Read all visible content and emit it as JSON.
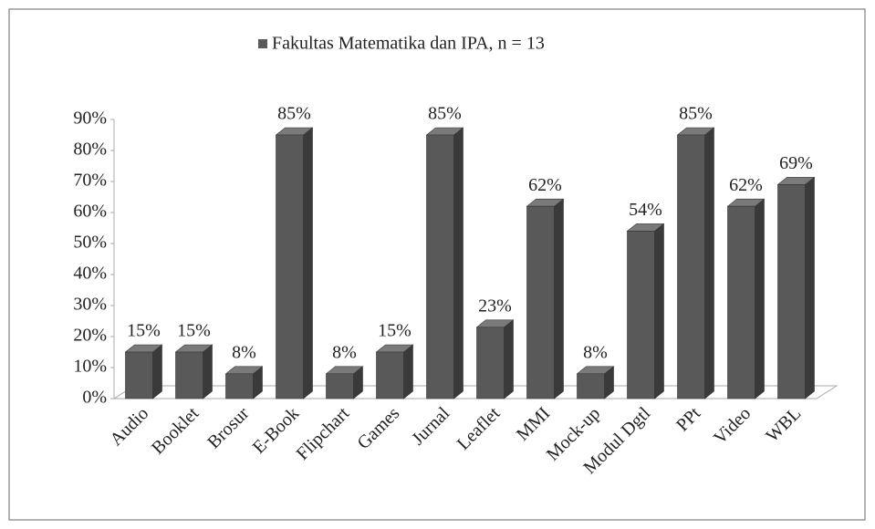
{
  "chart_data": {
    "type": "bar",
    "categories": [
      "Audio",
      "Booklet",
      "Brosur",
      "E-Book",
      "Flipchart",
      "Games",
      "Jurnal",
      "Leaflet",
      "MMI",
      "Mock-up",
      "Modul Dgtl",
      "PPt",
      "Video",
      "WBL"
    ],
    "series": [
      {
        "name": "Fakultas Matematika dan IPA, n = 13",
        "color": "#595959",
        "values": [
          15,
          15,
          8,
          85,
          8,
          15,
          85,
          23,
          62,
          8,
          54,
          85,
          62,
          69
        ],
        "value_labels": [
          "15%",
          "15%",
          "8%",
          "85%",
          "8%",
          "15%",
          "85%",
          "23%",
          "62%",
          "8%",
          "54%",
          "85%",
          "62%",
          "69%"
        ]
      }
    ],
    "ylim": [
      0,
      90
    ],
    "yticks": [
      {
        "value": 0,
        "label": "0%"
      },
      {
        "value": 10,
        "label": "10%"
      },
      {
        "value": 20,
        "label": "20%"
      },
      {
        "value": 30,
        "label": "30%"
      },
      {
        "value": 40,
        "label": "40%"
      },
      {
        "value": 50,
        "label": "50%"
      },
      {
        "value": 60,
        "label": "60%"
      },
      {
        "value": 70,
        "label": "70%"
      },
      {
        "value": 80,
        "label": "80%"
      },
      {
        "value": 90,
        "label": "90%"
      }
    ],
    "legend": "top"
  }
}
